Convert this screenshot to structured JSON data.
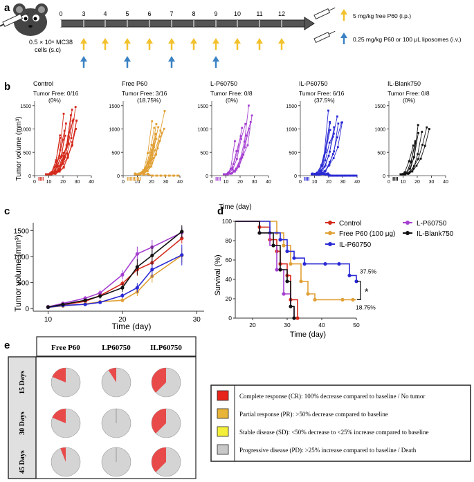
{
  "panels": {
    "a": "a",
    "b": "b",
    "c": "c",
    "d": "d",
    "e": "e"
  },
  "timeline": {
    "days": [
      "0",
      "3",
      "4",
      "5",
      "6",
      "7",
      "8",
      "9",
      "10",
      "11",
      "12"
    ],
    "cells_label": "0.5 × 10⁶ MC38",
    "cells_label2": "cells (s.c)",
    "legend": [
      {
        "text": "5 mg/kg free P60 (i.p.)",
        "color": "#f2c12e"
      },
      {
        "text": "0.25 mg/kg P60 or 100 μL liposomes (i.v.)",
        "color": "#3b82c4"
      }
    ],
    "ip_days": [
      3,
      4,
      5,
      6,
      7,
      8,
      9,
      10,
      11,
      12
    ],
    "iv_days": [
      3,
      5,
      7,
      9
    ]
  },
  "chart_data": [
    {
      "id": "b",
      "type": "line",
      "ylabel": "Tumor volume (mm³)",
      "xlabel": "Time (day)",
      "ylim": [
        0,
        1600
      ],
      "xlim": [
        0,
        40
      ],
      "yticks": [
        0,
        500,
        1000,
        1500
      ],
      "xticks": [
        0,
        10,
        20,
        30,
        40
      ],
      "groups": [
        {
          "name": "Control",
          "color": "#d42a1c",
          "tumor_free": "Tumor Free: 0/16",
          "pct": "(0%)",
          "n": 16,
          "free": 0,
          "marker": "square"
        },
        {
          "name": "Free P60",
          "color": "#e0a035",
          "tumor_free": "Tumor Free: 3/16",
          "pct": "(18.75%)",
          "n": 16,
          "free": 3,
          "marker": "square"
        },
        {
          "name": "L-P60750",
          "color": "#a53fd1",
          "tumor_free": "Tumor Free: 0/8",
          "pct": "(0%)",
          "n": 8,
          "free": 0,
          "marker": "triangle"
        },
        {
          "name": "IL-P60750",
          "color": "#2a2ad4",
          "tumor_free": "Tumor Free: 6/16",
          "pct": "(37.5%)",
          "n": 16,
          "free": 6,
          "marker": "diamond"
        },
        {
          "name": "IL-Blank750",
          "color": "#111111",
          "tumor_free": "Tumor Free: 0/8",
          "pct": "(0%)",
          "n": 8,
          "free": 0,
          "marker": "triangle-down"
        }
      ]
    },
    {
      "id": "c",
      "type": "line",
      "xlabel": "Time (day)",
      "ylabel": "Tumor volume (mm³)",
      "xlim": [
        8,
        31
      ],
      "ylim": [
        -50,
        1650
      ],
      "xticks": [
        10,
        20,
        30
      ],
      "yticks": [
        0,
        500,
        1000,
        1500
      ],
      "x": [
        10,
        12,
        15,
        17,
        20,
        22,
        24,
        28
      ],
      "series": [
        {
          "name": "Control",
          "color": "#d42a1c",
          "values": [
            30,
            70,
            140,
            250,
            480,
            750,
            880,
            1350
          ],
          "err": [
            10,
            20,
            30,
            40,
            60,
            120,
            140,
            100
          ]
        },
        {
          "name": "Free P60",
          "color": "#e0a035",
          "values": [
            25,
            50,
            90,
            130,
            160,
            320,
            620,
            1020
          ],
          "err": [
            10,
            15,
            20,
            25,
            40,
            80,
            120,
            140
          ]
        },
        {
          "name": "L-P60",
          "color": "#a53fd1",
          "values": [
            35,
            100,
            200,
            300,
            650,
            1050,
            1180,
            1460
          ],
          "err": [
            10,
            20,
            40,
            60,
            90,
            140,
            140,
            100
          ]
        },
        {
          "name": "IL-P60",
          "color": "#2a2ad4",
          "values": [
            25,
            60,
            80,
            120,
            250,
            400,
            750,
            1030
          ],
          "err": [
            10,
            15,
            20,
            30,
            50,
            90,
            150,
            200
          ]
        },
        {
          "name": "IL-Blank",
          "color": "#111111",
          "values": [
            30,
            80,
            160,
            240,
            400,
            800,
            1020,
            1480
          ],
          "err": [
            10,
            20,
            30,
            50,
            80,
            150,
            180,
            120
          ]
        }
      ]
    },
    {
      "id": "d",
      "type": "line",
      "xlabel": "Time (day)",
      "ylabel": "Survival (%)",
      "xlim": [
        15,
        50
      ],
      "ylim": [
        0,
        100
      ],
      "xticks": [
        20,
        30,
        40,
        50
      ],
      "yticks": [
        0,
        20,
        40,
        60,
        80,
        100
      ],
      "series": [
        {
          "name": "Control",
          "color": "#d42a1c",
          "steps": [
            [
              15,
              100
            ],
            [
              22,
              100
            ],
            [
              22,
              94
            ],
            [
              25,
              94
            ],
            [
              25,
              81
            ],
            [
              27,
              81
            ],
            [
              27,
              69
            ],
            [
              28,
              69
            ],
            [
              28,
              56
            ],
            [
              30,
              56
            ],
            [
              30,
              44
            ],
            [
              31,
              44
            ],
            [
              31,
              19
            ],
            [
              33,
              19
            ],
            [
              33,
              0
            ]
          ],
          "dots": [
            [
              22,
              94
            ],
            [
              25,
              81
            ],
            [
              27,
              69
            ],
            [
              28,
              56
            ],
            [
              30,
              44
            ],
            [
              31,
              19
            ],
            [
              33,
              0
            ]
          ]
        },
        {
          "name": "Free P60 (100 μg)",
          "color": "#e0a035",
          "steps": [
            [
              15,
              100
            ],
            [
              27,
              100
            ],
            [
              27,
              88
            ],
            [
              29,
              88
            ],
            [
              29,
              75
            ],
            [
              31,
              75
            ],
            [
              31,
              56
            ],
            [
              34,
              56
            ],
            [
              34,
              38
            ],
            [
              36,
              38
            ],
            [
              36,
              25
            ],
            [
              38,
              25
            ],
            [
              38,
              19
            ],
            [
              50,
              19
            ]
          ],
          "dots": [
            [
              27,
              88
            ],
            [
              29,
              75
            ],
            [
              31,
              56
            ],
            [
              34,
              38
            ],
            [
              36,
              25
            ],
            [
              38,
              19
            ],
            [
              46,
              19
            ],
            [
              49,
              19
            ]
          ]
        },
        {
          "name": "IL-P60750",
          "color": "#2a2ad4",
          "steps": [
            [
              15,
              100
            ],
            [
              25,
              100
            ],
            [
              25,
              88
            ],
            [
              28,
              88
            ],
            [
              28,
              81
            ],
            [
              30,
              81
            ],
            [
              30,
              69
            ],
            [
              32,
              69
            ],
            [
              32,
              62
            ],
            [
              35,
              62
            ],
            [
              35,
              56
            ],
            [
              48,
              56
            ],
            [
              48,
              44
            ],
            [
              50,
              44
            ],
            [
              50,
              38
            ]
          ],
          "dots": [
            [
              25,
              88
            ],
            [
              28,
              81
            ],
            [
              30,
              69
            ],
            [
              32,
              62
            ],
            [
              35,
              56
            ],
            [
              41,
              56
            ],
            [
              45,
              56
            ],
            [
              48,
              44
            ],
            [
              50,
              38
            ]
          ]
        },
        {
          "name": "L-P60750",
          "color": "#a53fd1",
          "steps": [
            [
              15,
              100
            ],
            [
              22,
              100
            ],
            [
              22,
              88
            ],
            [
              25,
              88
            ],
            [
              25,
              75
            ],
            [
              27,
              75
            ],
            [
              27,
              50
            ],
            [
              29,
              50
            ],
            [
              29,
              25
            ],
            [
              31,
              25
            ],
            [
              31,
              12
            ],
            [
              32,
              12
            ],
            [
              32,
              0
            ]
          ],
          "dots": [
            [
              22,
              88
            ],
            [
              27,
              50
            ],
            [
              29,
              25
            ],
            [
              32,
              0
            ]
          ]
        },
        {
          "name": "IL-Blank750",
          "color": "#111111",
          "steps": [
            [
              15,
              100
            ],
            [
              22,
              100
            ],
            [
              22,
              88
            ],
            [
              26,
              88
            ],
            [
              26,
              75
            ],
            [
              28,
              75
            ],
            [
              28,
              50
            ],
            [
              30,
              50
            ],
            [
              30,
              38
            ],
            [
              31,
              38
            ],
            [
              31,
              12
            ],
            [
              32,
              12
            ],
            [
              32,
              0
            ]
          ],
          "dots": [
            [
              22,
              88
            ],
            [
              26,
              75
            ],
            [
              28,
              50
            ],
            [
              30,
              38
            ],
            [
              31,
              12
            ],
            [
              32,
              0
            ]
          ]
        }
      ],
      "annotations": {
        "top": "37.5%",
        "bottom": "18.75%",
        "sig": "*"
      }
    },
    {
      "id": "e",
      "type": "pie",
      "columns": [
        "Free P60",
        "LP60750",
        "ILP60750"
      ],
      "rows": [
        "15 Days",
        "30 Days",
        "45 Days"
      ],
      "cr_fraction": [
        [
          0.1875,
          0.09,
          0.375
        ],
        [
          0.1875,
          0.0,
          0.375
        ],
        [
          0.06,
          0.0,
          0.375
        ]
      ],
      "colors": {
        "cr": "#e84a4a",
        "pd": "#d4d4d4"
      },
      "legend": [
        {
          "color": "#e8251c",
          "text": "Complete response (CR): 100% decrease compared to baseline / No tumor"
        },
        {
          "color": "#e8b53a",
          "text": "Partial response (PR): >50% decrease compared to baseline"
        },
        {
          "color": "#f4f03a",
          "text": "Stable disease (SD): <50% decrease to <25% increase compared to baseline"
        },
        {
          "color": "#c8c8c8",
          "text": "Progressive disease (PD): >25% increase compared to baseline / Death"
        }
      ]
    }
  ]
}
